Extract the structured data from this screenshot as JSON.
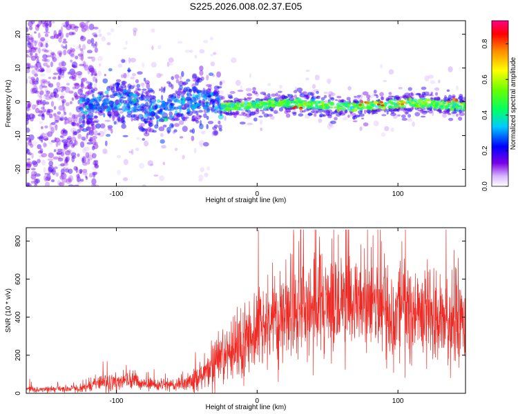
{
  "figure_title": "S225.2026.008.02.37.E05",
  "colors": {
    "snr_line": "#ee2a24",
    "spectrum_base": "#6a00e8",
    "frame": "#000000",
    "background": "#ffffff"
  },
  "chart_data": [
    {
      "type": "heatmap",
      "name": "spectrogram",
      "xlabel": "Height of straight line (km)",
      "ylabel": "Frequency (Hz)",
      "xlim": [
        -164,
        148
      ],
      "ylim": [
        -25,
        24
      ],
      "x_ticks": [
        -100,
        0,
        100
      ],
      "y_ticks": [
        -20,
        -10,
        0,
        10,
        20
      ],
      "grid": false,
      "colormap": "rainbow (violet → blue → cyan → green → yellow → orange → red)",
      "colorbar": {
        "label": "Normalized spectral amplitude",
        "range": [
          0.0,
          0.93
        ],
        "ticks": [
          0.0,
          0.2,
          0.4,
          0.6,
          0.8
        ]
      },
      "description_series": [
        {
          "name": "scattered noise region",
          "x_range": [
            -164,
            -120
          ],
          "frequency_spread_hz": [
            -25,
            24
          ],
          "amplitude": 0.05
        },
        {
          "name": "signal band broad",
          "x_range": [
            -120,
            -25
          ],
          "frequency_center_hz": [
            0,
            -2
          ],
          "frequency_spread_hz": 8,
          "amplitude": 0.2
        },
        {
          "name": "signal band narrow",
          "x_range": [
            -25,
            148
          ],
          "frequency_center_hz": [
            -1,
            0
          ],
          "frequency_spread_hz": 2,
          "amplitude": 0.75
        }
      ],
      "peak_points": [
        {
          "x": 25,
          "y": -1.8,
          "amplitude": 0.93
        },
        {
          "x": 75,
          "y": -0.3,
          "amplitude": 0.9
        },
        {
          "x": 88,
          "y": -0.6,
          "amplitude": 0.92
        },
        {
          "x": 103,
          "y": -0.5,
          "amplitude": 0.85
        },
        {
          "x": 140,
          "y": 0.2,
          "amplitude": 0.88
        }
      ]
    },
    {
      "type": "line",
      "name": "snr",
      "xlabel": "Height of straight line (km)",
      "ylabel": "SNR (10 * v/v)",
      "xlim": [
        -164,
        148
      ],
      "ylim": [
        0,
        870
      ],
      "x_ticks": [
        -100,
        0,
        100
      ],
      "y_ticks": [
        0,
        200,
        400,
        600,
        800
      ],
      "grid": false,
      "series": [
        {
          "name": "SNR",
          "envelope": [
            {
              "x": -164,
              "mean": 20,
              "spread": 20
            },
            {
              "x": -125,
              "mean": 25,
              "spread": 20
            },
            {
              "x": -110,
              "mean": 60,
              "spread": 60
            },
            {
              "x": -95,
              "mean": 70,
              "spread": 60
            },
            {
              "x": -80,
              "mean": 50,
              "spread": 40
            },
            {
              "x": -60,
              "mean": 40,
              "spread": 30
            },
            {
              "x": -45,
              "mean": 70,
              "spread": 60
            },
            {
              "x": -35,
              "mean": 120,
              "spread": 100
            },
            {
              "x": -25,
              "mean": 180,
              "spread": 150
            },
            {
              "x": -15,
              "mean": 240,
              "spread": 200
            },
            {
              "x": -5,
              "mean": 300,
              "spread": 220
            },
            {
              "x": 10,
              "mean": 380,
              "spread": 250
            },
            {
              "x": 30,
              "mean": 440,
              "spread": 300
            },
            {
              "x": 50,
              "mean": 470,
              "spread": 300
            },
            {
              "x": 70,
              "mean": 480,
              "spread": 300
            },
            {
              "x": 90,
              "mean": 460,
              "spread": 300
            },
            {
              "x": 110,
              "mean": 420,
              "spread": 280
            },
            {
              "x": 130,
              "mean": 380,
              "spread": 260
            },
            {
              "x": 148,
              "mean": 340,
              "spread": 250
            }
          ],
          "peak_max": 860
        }
      ]
    }
  ]
}
